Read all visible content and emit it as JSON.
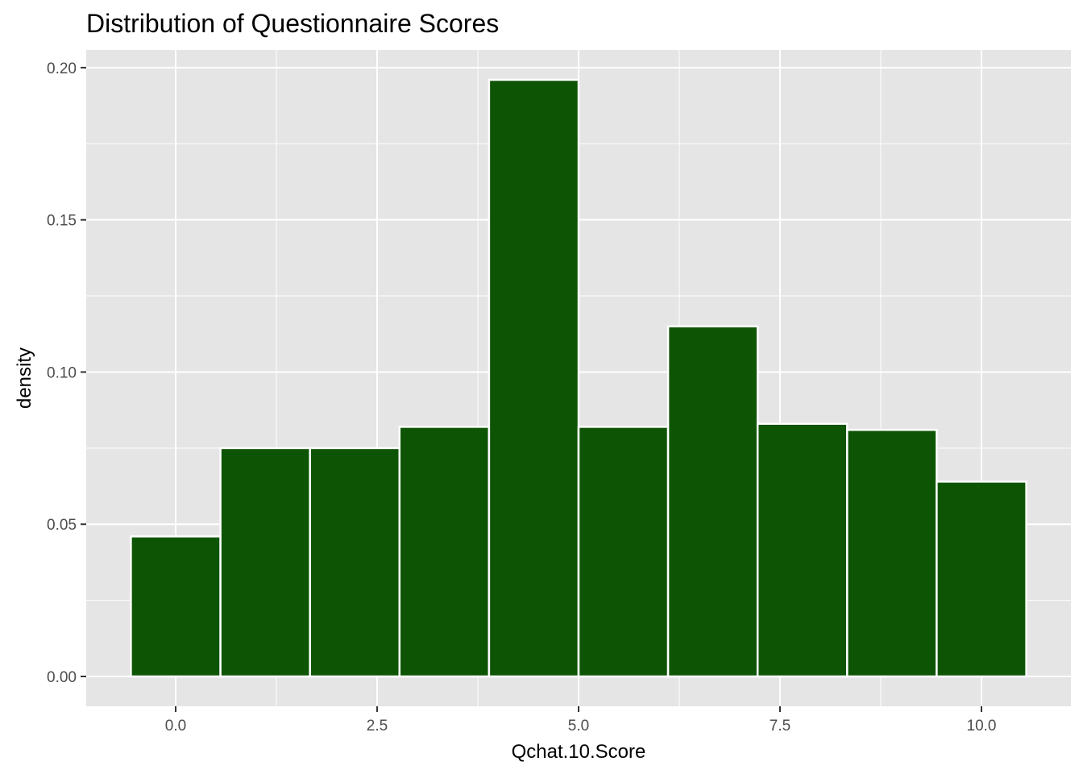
{
  "chart_data": {
    "type": "bar",
    "subtype": "histogram",
    "title": "Distribution of Questionnaire Scores",
    "xlabel": "Qchat.10.Score",
    "ylabel": "density",
    "bins": [
      {
        "x_start": -0.556,
        "x_end": 0.556,
        "density": 0.046
      },
      {
        "x_start": 0.556,
        "x_end": 1.667,
        "density": 0.075
      },
      {
        "x_start": 1.667,
        "x_end": 2.778,
        "density": 0.075
      },
      {
        "x_start": 2.778,
        "x_end": 3.889,
        "density": 0.082
      },
      {
        "x_start": 3.889,
        "x_end": 5.0,
        "density": 0.196
      },
      {
        "x_start": 5.0,
        "x_end": 6.111,
        "density": 0.082
      },
      {
        "x_start": 6.111,
        "x_end": 7.222,
        "density": 0.115
      },
      {
        "x_start": 7.222,
        "x_end": 8.333,
        "density": 0.083
      },
      {
        "x_start": 8.333,
        "x_end": 9.444,
        "density": 0.081
      },
      {
        "x_start": 9.444,
        "x_end": 10.556,
        "density": 0.064
      }
    ],
    "xticks": [
      0.0,
      2.5,
      5.0,
      7.5,
      10.0
    ],
    "xtick_labels": [
      "0.0",
      "2.5",
      "5.0",
      "7.5",
      "10.0"
    ],
    "yticks": [
      0.0,
      0.05,
      0.1,
      0.15,
      0.2
    ],
    "ytick_labels": [
      "0.00",
      "0.05",
      "0.10",
      "0.15",
      "0.20"
    ],
    "xlim": [
      -1.11,
      11.11
    ],
    "ylim": [
      -0.0098,
      0.2058
    ],
    "grid": true,
    "legend": "none",
    "colors": {
      "bar_fill": "#0d5504",
      "bar_outline": "#ffffff",
      "panel_background": "#e5e5e5",
      "grid": "#ffffff"
    }
  }
}
